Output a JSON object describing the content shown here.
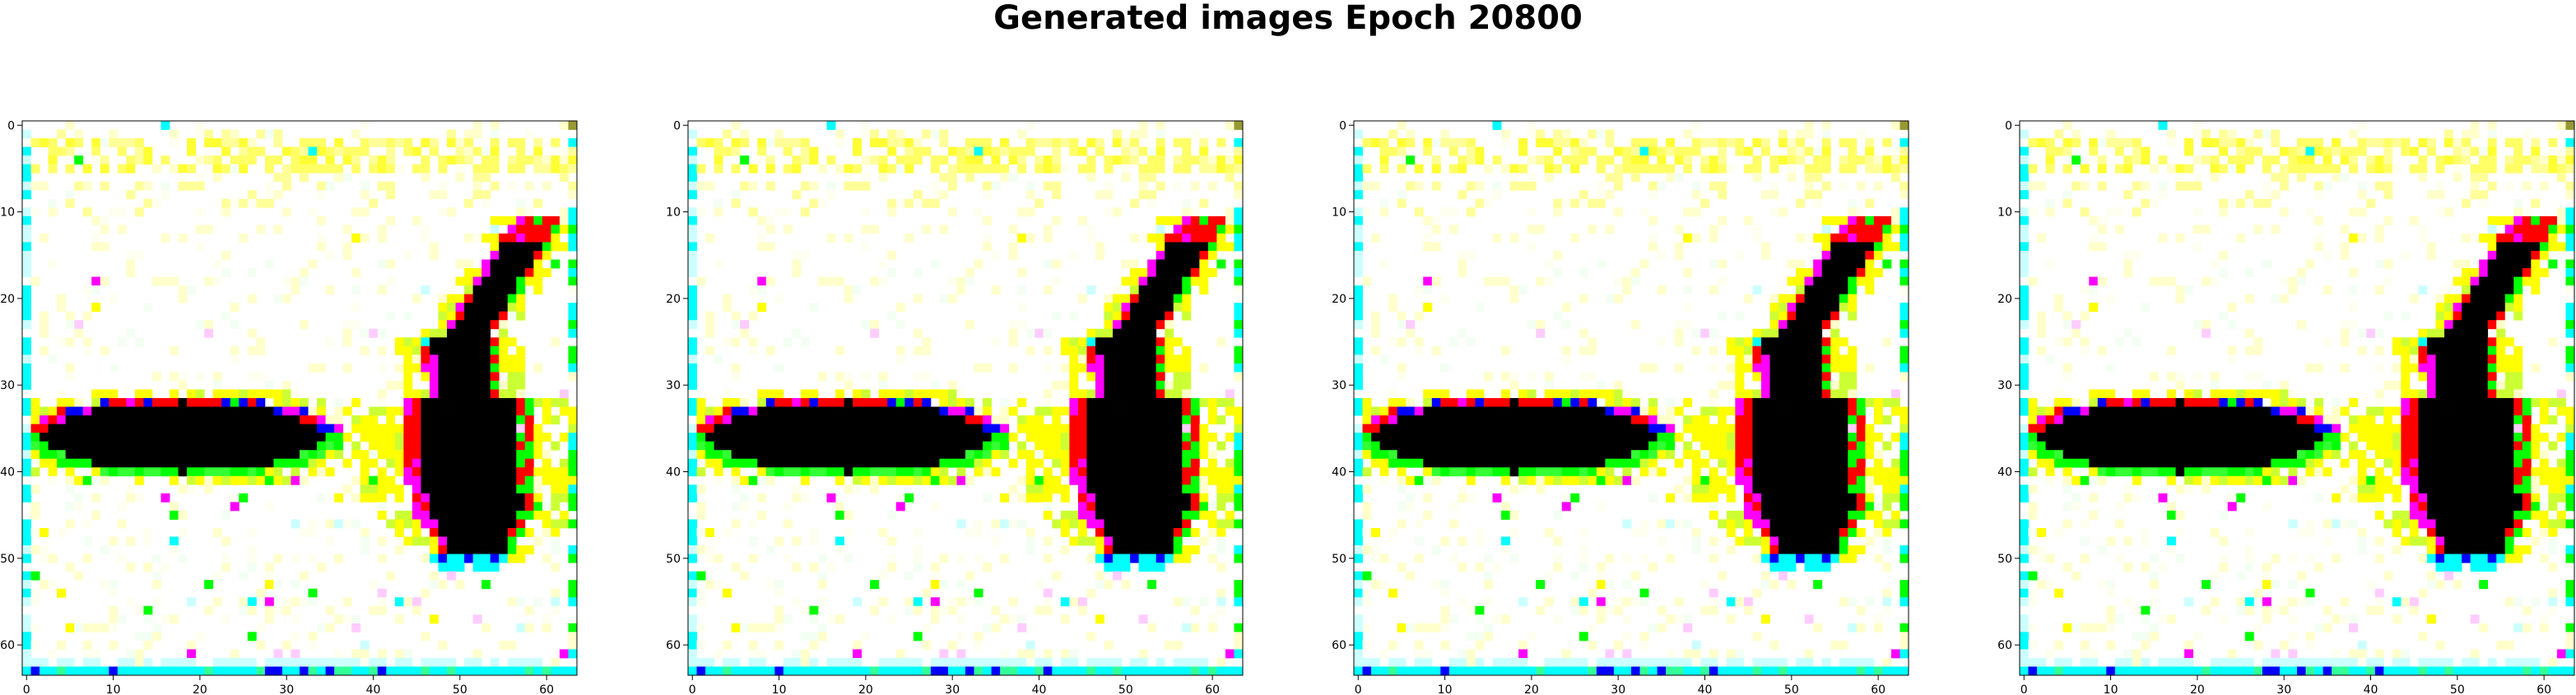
{
  "figure": {
    "title": "Generated images Epoch 20800"
  },
  "chart_data": [
    {
      "type": "heatmap",
      "title": "",
      "xlabel": "",
      "ylabel": "",
      "xlim": [
        0,
        63
      ],
      "ylim": [
        63,
        0
      ],
      "x_ticks": [
        0,
        10,
        20,
        30,
        40,
        50,
        60
      ],
      "y_ticks": [
        0,
        10,
        20,
        30,
        40,
        50,
        60
      ],
      "grid": false
    },
    {
      "type": "heatmap",
      "title": "",
      "xlabel": "",
      "ylabel": "",
      "xlim": [
        0,
        63
      ],
      "ylim": [
        63,
        0
      ],
      "x_ticks": [
        0,
        10,
        20,
        30,
        40,
        50,
        60
      ],
      "y_ticks": [
        0,
        10,
        20,
        30,
        40,
        50,
        60
      ],
      "grid": false
    },
    {
      "type": "heatmap",
      "title": "",
      "xlabel": "",
      "ylabel": "",
      "xlim": [
        0,
        63
      ],
      "ylim": [
        63,
        0
      ],
      "x_ticks": [
        0,
        10,
        20,
        30,
        40,
        50,
        60
      ],
      "y_ticks": [
        0,
        10,
        20,
        30,
        40,
        50,
        60
      ],
      "grid": false
    },
    {
      "type": "heatmap",
      "title": "",
      "xlabel": "",
      "ylabel": "",
      "xlim": [
        0,
        63
      ],
      "ylim": [
        63,
        0
      ],
      "x_ticks": [
        0,
        10,
        20,
        30,
        40,
        50,
        60
      ],
      "y_ticks": [
        0,
        10,
        20,
        30,
        40,
        50,
        60
      ],
      "grid": false
    }
  ]
}
